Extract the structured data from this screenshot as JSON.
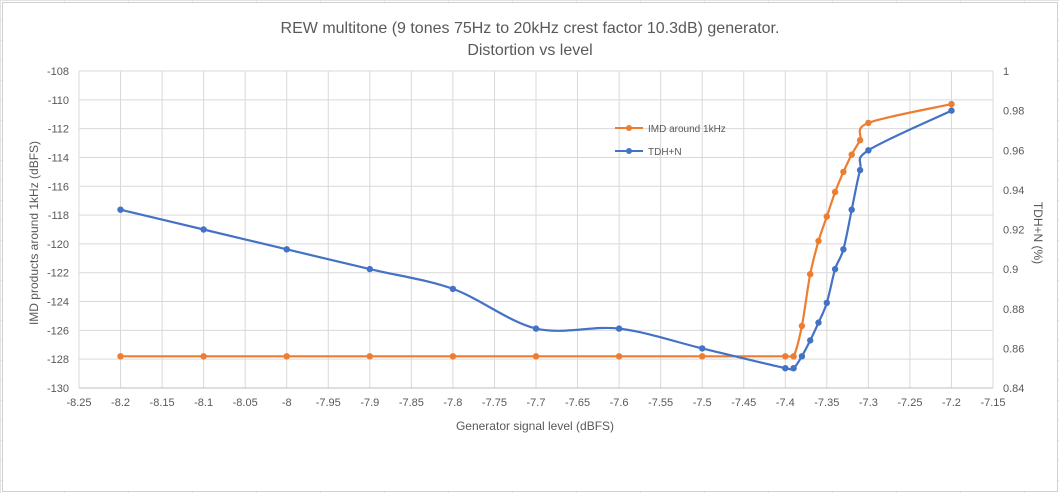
{
  "chart_data": {
    "type": "line",
    "title": "REW multitone (9 tones 75Hz to 20kHz crest factor 10.3dB) generator.",
    "subtitle": "Distortion vs level",
    "xlabel": "Generator signal level (dBFS)",
    "ylabel": "IMD products around 1kHz (dBFS)",
    "y2label": "TDH+N (%)",
    "xlim": [
      -8.25,
      -7.15
    ],
    "ylim": [
      -130,
      -108
    ],
    "y2lim": [
      0.84,
      1.0
    ],
    "x_ticks": [
      "-8.25",
      "-8.2",
      "-8.15",
      "-8.1",
      "-8.05",
      "-8",
      "-7.95",
      "-7.9",
      "-7.85",
      "-7.8",
      "-7.75",
      "-7.7",
      "-7.65",
      "-7.6",
      "-7.55",
      "-7.5",
      "-7.45",
      "-7.4",
      "-7.35",
      "-7.3",
      "-7.25",
      "-7.2",
      "-7.15"
    ],
    "y_ticks": [
      "-108",
      "-110",
      "-112",
      "-114",
      "-116",
      "-118",
      "-120",
      "-122",
      "-124",
      "-126",
      "-128",
      "-130"
    ],
    "y2_ticks": [
      "1",
      "0.98",
      "0.96",
      "0.94",
      "0.92",
      "0.9",
      "0.88",
      "0.86",
      "0.84"
    ],
    "grid": true,
    "legend_position": "upper-middle-right",
    "series": [
      {
        "name": "IMD around 1kHz",
        "axis": "left",
        "color": "#ED7D31",
        "x": [
          -8.2,
          -8.1,
          -8.0,
          -7.9,
          -7.8,
          -7.7,
          -7.6,
          -7.5,
          -7.4,
          -7.39,
          -7.38,
          -7.37,
          -7.36,
          -7.35,
          -7.34,
          -7.33,
          -7.32,
          -7.31,
          -7.3,
          -7.2
        ],
        "y": [
          -127.8,
          -127.8,
          -127.8,
          -127.8,
          -127.8,
          -127.8,
          -127.8,
          -127.8,
          -127.8,
          -127.8,
          -125.7,
          -122.1,
          -119.8,
          -118.1,
          -116.4,
          -115.0,
          -113.8,
          -112.8,
          -111.6,
          -110.3
        ]
      },
      {
        "name": "TDH+N",
        "axis": "right",
        "color": "#4472C4",
        "x": [
          -8.2,
          -8.1,
          -8.0,
          -7.9,
          -7.8,
          -7.7,
          -7.6,
          -7.5,
          -7.4,
          -7.39,
          -7.38,
          -7.37,
          -7.36,
          -7.35,
          -7.34,
          -7.33,
          -7.32,
          -7.31,
          -7.3,
          -7.2
        ],
        "y": [
          0.93,
          0.92,
          0.91,
          0.9,
          0.89,
          0.87,
          0.87,
          0.86,
          0.85,
          0.85,
          0.856,
          0.864,
          0.873,
          0.883,
          0.9,
          0.91,
          0.93,
          0.95,
          0.96,
          0.98
        ]
      }
    ]
  }
}
